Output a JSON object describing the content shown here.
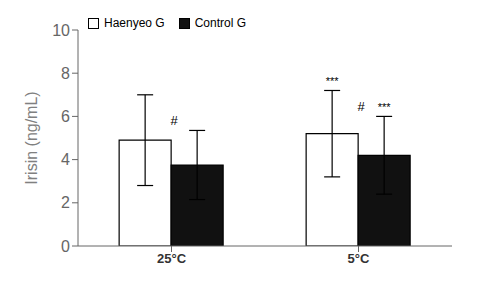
{
  "chart_data": {
    "type": "bar",
    "categories": [
      "25°C",
      "5°C"
    ],
    "series": [
      {
        "name": "Haenyeo G",
        "color": "#ffffff",
        "values": [
          4.9,
          5.2
        ],
        "errors": [
          2.1,
          2.0
        ]
      },
      {
        "name": "Control G",
        "color": "#111111",
        "values": [
          3.75,
          4.2
        ],
        "errors": [
          1.6,
          1.8
        ]
      }
    ],
    "ylabel": "Irisin (ng/mL)",
    "ylim": [
      0,
      10
    ],
    "yticks": [
      0,
      2,
      4,
      6,
      8,
      10
    ],
    "legend": "upper left",
    "annotations": [
      {
        "text": "#",
        "category": "25°C",
        "series": "Control G",
        "align": "left"
      },
      {
        "text": "***",
        "category": "5°C",
        "series": "Haenyeo G",
        "align": "center"
      },
      {
        "text": "#",
        "category": "5°C",
        "series": "Control G",
        "align": "left"
      },
      {
        "text": "***",
        "category": "5°C",
        "series": "Control G",
        "align": "center"
      }
    ]
  }
}
